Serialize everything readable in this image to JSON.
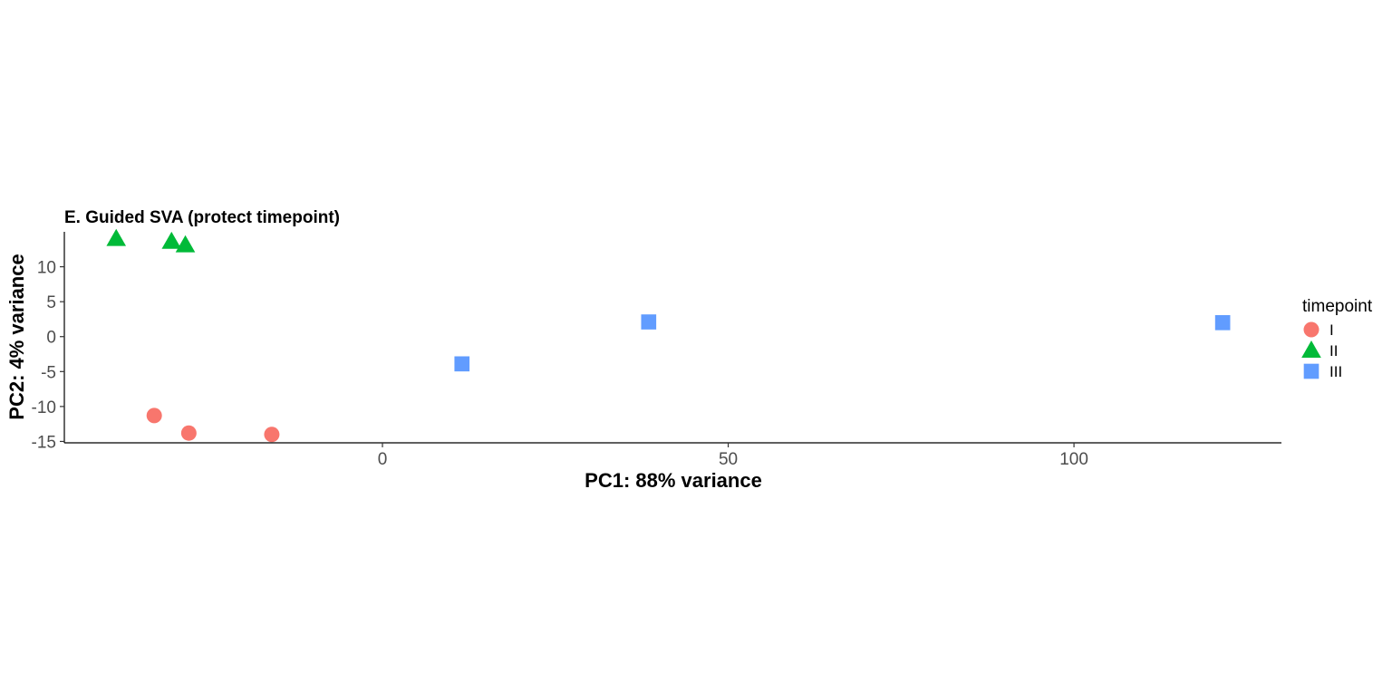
{
  "chart_data": {
    "type": "scatter",
    "title": "E. Guided SVA (protect timepoint)",
    "xlabel": "PC1: 88% variance",
    "ylabel": "PC2: 4% variance",
    "xlim": [
      -46,
      130
    ],
    "ylim": [
      -15.2,
      15.0
    ],
    "xticks": [
      0,
      50,
      100
    ],
    "yticks": [
      10,
      5,
      0,
      -5,
      -10,
      -15
    ],
    "grid": false,
    "legend": {
      "title": "timepoint",
      "placement": "right"
    },
    "series": [
      {
        "name": "I",
        "shape": "circle",
        "color": "#F8766D",
        "points": [
          {
            "x": -33.0,
            "y": -11.3
          },
          {
            "x": -28.0,
            "y": -13.8
          },
          {
            "x": -16.0,
            "y": -14.0
          }
        ]
      },
      {
        "name": "II",
        "shape": "triangle",
        "color": "#00BA38",
        "points": [
          {
            "x": -38.5,
            "y": 14.0
          },
          {
            "x": -30.5,
            "y": 13.6
          },
          {
            "x": -28.5,
            "y": 13.1
          }
        ]
      },
      {
        "name": "III",
        "shape": "square",
        "color": "#619CFF",
        "points": [
          {
            "x": 11.5,
            "y": -3.9
          },
          {
            "x": 38.5,
            "y": 2.1
          },
          {
            "x": 121.5,
            "y": 2.0
          }
        ]
      }
    ]
  }
}
